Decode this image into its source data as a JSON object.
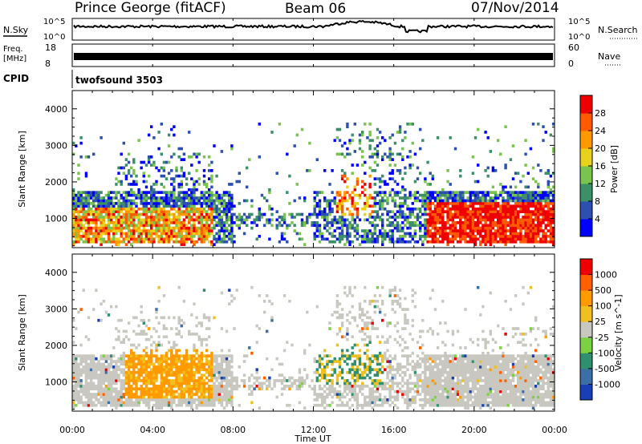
{
  "header": {
    "station": "Prince George (fitACF)",
    "beam": "Beam 06",
    "date": "07/Nov/2014"
  },
  "sky_panel": {
    "left_label": "N.Sky",
    "left_ticks": [
      "10^5",
      "10^0"
    ],
    "right_label": "N.Search",
    "right_ticks": [
      "10^5",
      "10^0"
    ]
  },
  "freq_panel": {
    "left_label_1": "Freq.",
    "left_label_2": "[MHz]",
    "left_ticks": [
      "18",
      "8"
    ],
    "right_label": "Nave",
    "right_ticks": [
      "60",
      "0"
    ]
  },
  "cpid": {
    "label": "CPID",
    "program": "twofsound 3503"
  },
  "chart_data": [
    {
      "type": "heatmap",
      "name": "power",
      "ylabel": "Slant Range [km]",
      "ylim": [
        200,
        4500
      ],
      "yticks": [
        "4000",
        "3000",
        "2000",
        "1000"
      ],
      "colorbar_label": "Power [dB]",
      "colorbar_ticks": [
        "28",
        "24",
        "20",
        "16",
        "12",
        "8",
        "4"
      ],
      "colors": [
        "#0000ff",
        "#2d4fb0",
        "#3c8f66",
        "#7ac34e",
        "#e8d21c",
        "#ff9900",
        "#ff5a00",
        "#ee0000"
      ]
    },
    {
      "type": "heatmap",
      "name": "velocity",
      "ylabel": "Slant Range [km]",
      "ylim": [
        200,
        4500
      ],
      "yticks": [
        "4000",
        "3000",
        "2000",
        "1000"
      ],
      "colorbar_label": "Velocity [m s^-1]",
      "colorbar_ticks": [
        "1000",
        "500",
        "100",
        "25",
        "-25",
        "-100",
        "-500",
        "-1000"
      ],
      "colors": [
        "#1a3fb5",
        "#3c6fa8",
        "#2f8f6f",
        "#7cd043",
        "#c8c8c0",
        "#f0c020",
        "#ff9a00",
        "#ff6000",
        "#ee0000"
      ]
    }
  ],
  "xaxis": {
    "label": "Time UT",
    "ticks": [
      "00:00",
      "04:00",
      "08:00",
      "12:00",
      "16:00",
      "20:00",
      "00:00"
    ]
  }
}
